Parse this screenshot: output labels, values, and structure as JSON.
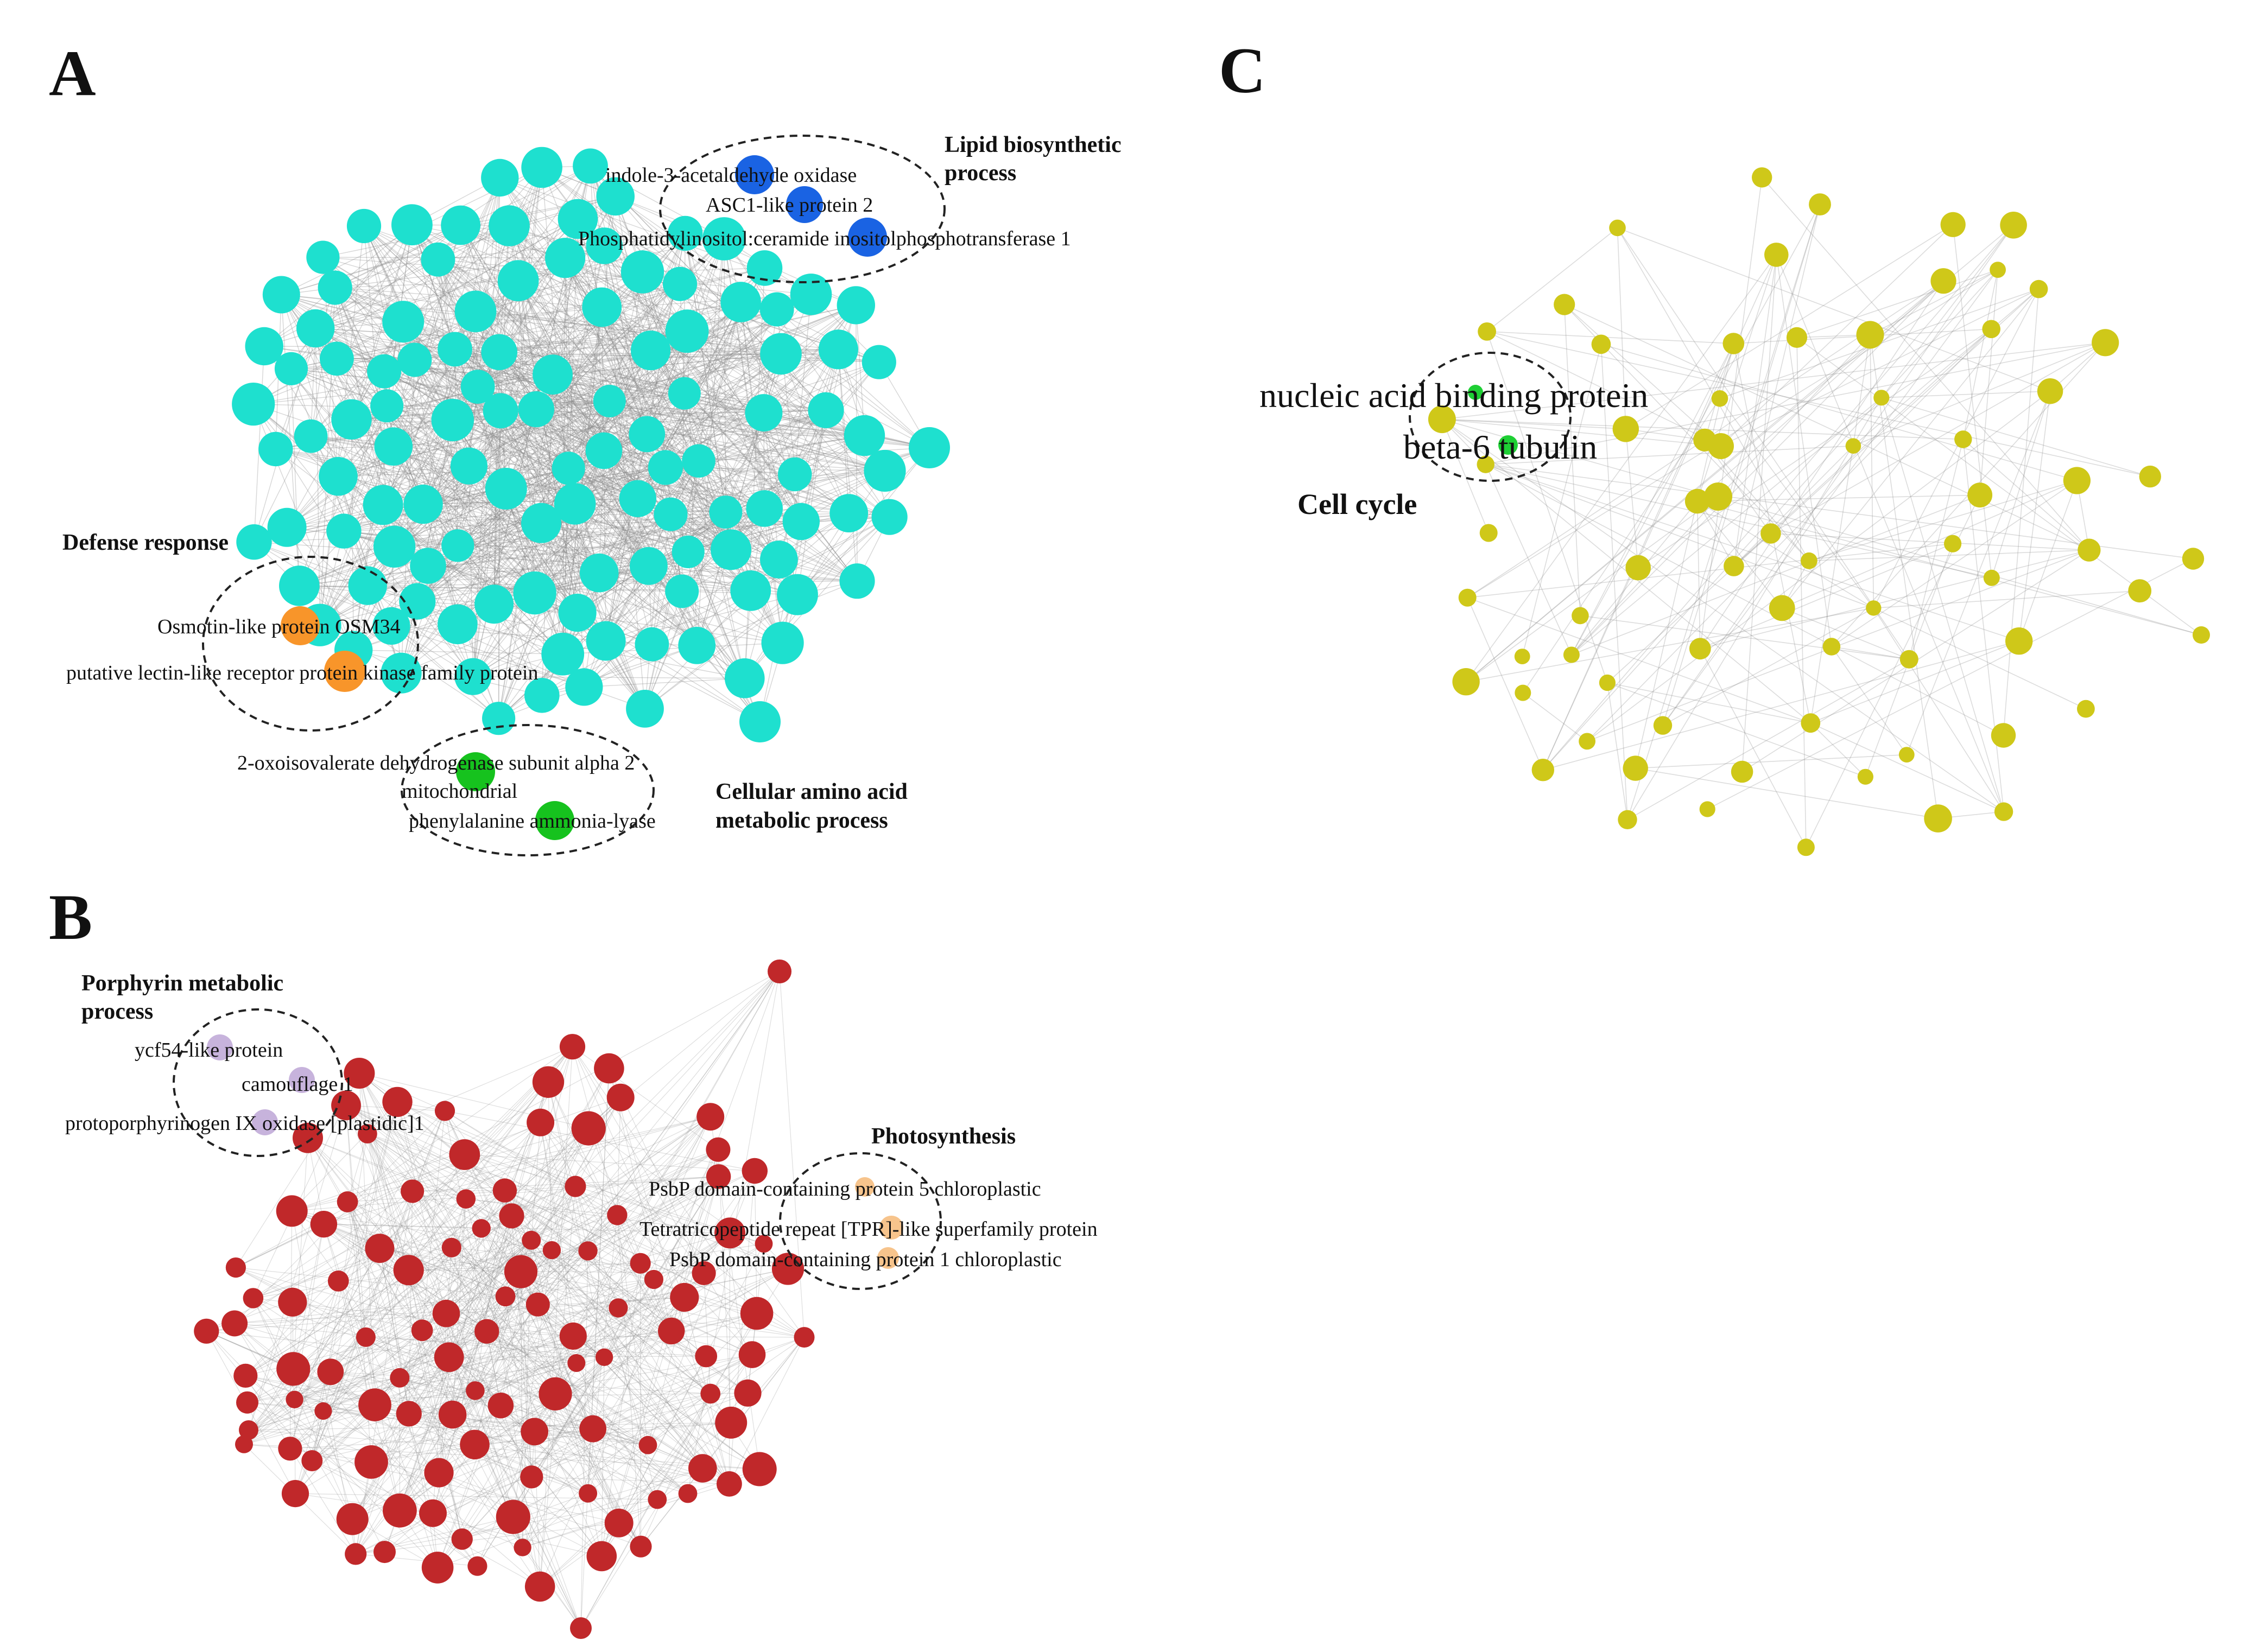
{
  "colors": {
    "panel_a_node": "#1ee0cf",
    "panel_b_node": "#c0282a",
    "panel_c_node": "#cfc819",
    "edge": "#8a8a8a",
    "lipid": "#1a63e3",
    "defense": "#f8952a",
    "amino": "#16c21e",
    "porphyrin": "#c7b3dc",
    "photosynthesis": "#f7c48c",
    "cell_cycle": "#1ecf34"
  },
  "panels": {
    "A": {
      "letter": "A",
      "lipid_group": {
        "line1": "Lipid biosynthetic",
        "line2": "process"
      },
      "lipid_genes": [
        "indole-3-acetaldehyde oxidase",
        "ASC1-like protein 2",
        "Phosphatidylinositol:ceramide inositolphosphotransferase 1"
      ],
      "defense_group": "Defense response",
      "defense_genes": [
        "Osmotin-like protein OSM34",
        "putative lectin-like receptor protein kinase family protein"
      ],
      "amino_group": {
        "line1": "Cellular amino acid",
        "line2": "metabolic process"
      },
      "amino_genes": [
        "2-oxoisovalerate dehydrogenase subunit alpha 2",
        "mitochondrial",
        "phenylalanine ammonia-lyase"
      ]
    },
    "B": {
      "letter": "B",
      "porphyrin_group": {
        "line1": "Porphyrin metabolic",
        "line2": "process"
      },
      "porphyrin_genes": [
        "ycf54-like protein",
        "camouflage 1",
        "protoporphyrinogen IX oxidase [plastidic]1"
      ],
      "photo_group": "Photosynthesis",
      "photo_genes": [
        "PsbP domain-containing protein 5 chloroplastic",
        "Tetratricopeptide repeat [TPR]-like superfamily protein",
        "PsbP domain-containing protein 1 chloroplastic"
      ]
    },
    "C": {
      "letter": "C",
      "cycle_group": "Cell cycle",
      "cycle_genes": [
        "nucleic acid binding protein",
        "beta-6 tubulin"
      ]
    }
  }
}
